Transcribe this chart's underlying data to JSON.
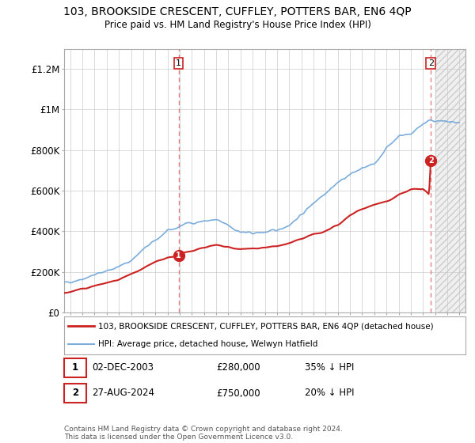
{
  "title": "103, BROOKSIDE CRESCENT, CUFFLEY, POTTERS BAR, EN6 4QP",
  "subtitle": "Price paid vs. HM Land Registry's House Price Index (HPI)",
  "ylabel_ticks": [
    "£0",
    "£200K",
    "£400K",
    "£600K",
    "£800K",
    "£1M",
    "£1.2M"
  ],
  "ytick_values": [
    0,
    200000,
    400000,
    600000,
    800000,
    1000000,
    1200000
  ],
  "ylim": [
    0,
    1300000
  ],
  "xlim_start": 1994.5,
  "xlim_end": 2027.5,
  "hpi_color": "#7aaddc",
  "price_color": "#cc2222",
  "marker1_x": 2003.92,
  "marker1_y": 280000,
  "marker2_x": 2024.65,
  "marker2_y": 750000,
  "vline1_x": 2003.92,
  "vline2_x": 2024.65,
  "legend_line1": "103, BROOKSIDE CRESCENT, CUFFLEY, POTTERS BAR, EN6 4QP (detached house)",
  "legend_line2": "HPI: Average price, detached house, Welwyn Hatfield",
  "annotation1_date": "02-DEC-2003",
  "annotation1_price": "£280,000",
  "annotation1_hpi": "35% ↓ HPI",
  "annotation2_date": "27-AUG-2024",
  "annotation2_price": "£750,000",
  "annotation2_hpi": "20% ↓ HPI",
  "footer": "Contains HM Land Registry data © Crown copyright and database right 2024.\nThis data is licensed under the Open Government Licence v3.0.",
  "bg_color": "#ffffff",
  "grid_color": "#cccccc",
  "hatch_start": 2025.0
}
